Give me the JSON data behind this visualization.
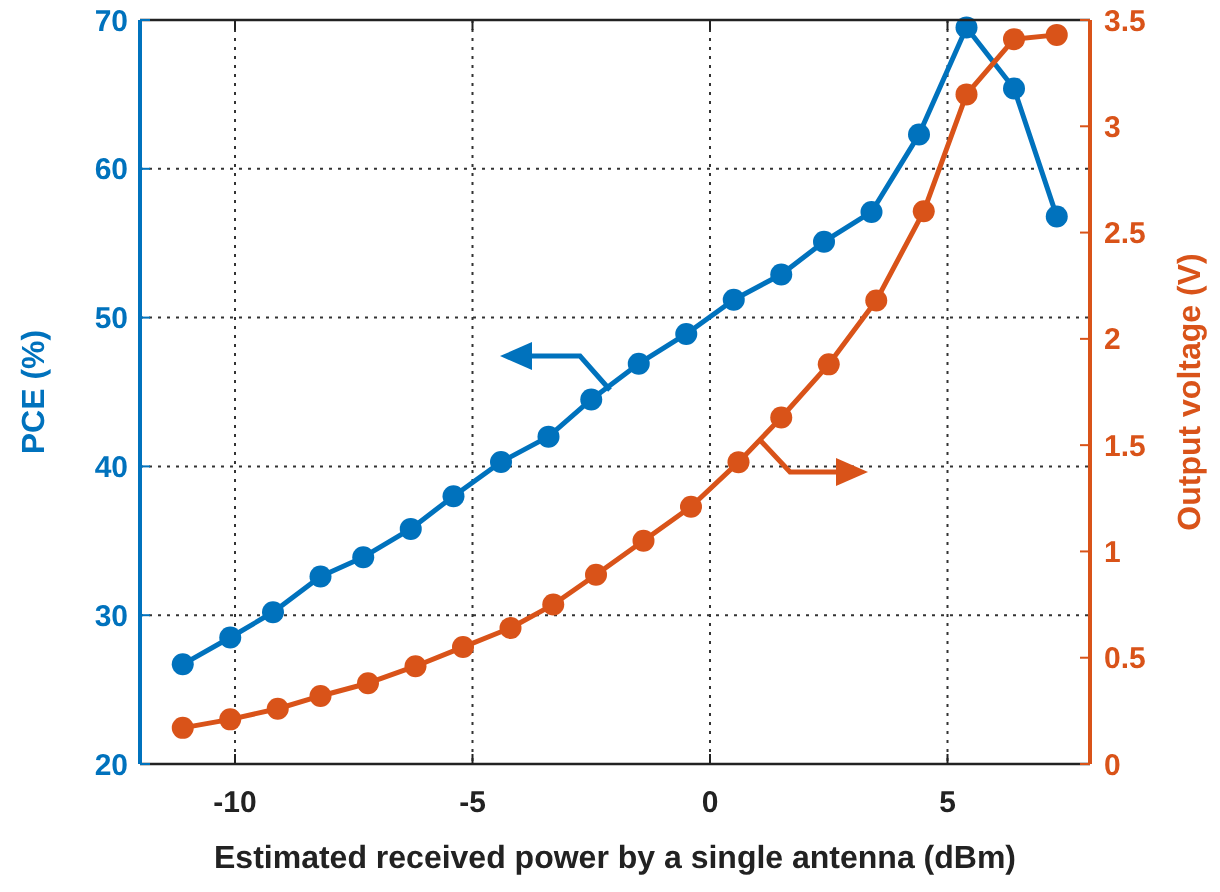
{
  "chart_data": {
    "type": "line",
    "xlabel": "Estimated received power by a single antenna (dBm)",
    "ylabel": "PCE  (%)",
    "y2label": "Output voltage (V)",
    "xlim": [
      -12,
      8
    ],
    "xticks": [
      -10,
      -5,
      0,
      5
    ],
    "ylim": [
      20,
      70
    ],
    "yticks": [
      20,
      30,
      40,
      50,
      60,
      70
    ],
    "y2lim": [
      0,
      3.5
    ],
    "y2ticks": [
      0,
      0.5,
      1,
      1.5,
      2,
      2.5,
      3,
      3.5
    ],
    "grid": true,
    "marker": "circle",
    "line_style": "solid",
    "series": [
      {
        "color": "#0072bd",
        "x": [
          -11.1,
          -10.1,
          -9.2,
          -8.2,
          -7.3,
          -6.3,
          -5.4,
          -4.4,
          -3.4,
          -2.5,
          -1.5,
          -0.5,
          0.5,
          1.5,
          2.4,
          3.4,
          4.4,
          5.4,
          6.4,
          7.3
        ],
        "values": [
          26.7,
          28.5,
          30.2,
          32.6,
          33.9,
          35.8,
          38.0,
          40.3,
          42.0,
          44.5,
          46.9,
          48.9,
          51.2,
          52.9,
          55.1,
          57.1,
          62.3,
          69.5,
          65.4,
          56.8
        ]
      },
      {
        "color": "#d95319",
        "axis": "y2",
        "x": [
          -11.1,
          -10.1,
          -9.1,
          -8.2,
          -7.2,
          -6.2,
          -5.2,
          -4.2,
          -3.3,
          -2.4,
          -1.4,
          -0.4,
          0.6,
          1.5,
          2.5,
          3.5,
          4.5,
          5.4,
          6.4,
          7.3
        ],
        "values": [
          0.17,
          0.21,
          0.26,
          0.32,
          0.38,
          0.46,
          0.55,
          0.64,
          0.75,
          0.89,
          1.05,
          1.21,
          1.42,
          1.63,
          1.88,
          2.18,
          2.6,
          3.15,
          3.41,
          3.43
        ]
      }
    ]
  }
}
